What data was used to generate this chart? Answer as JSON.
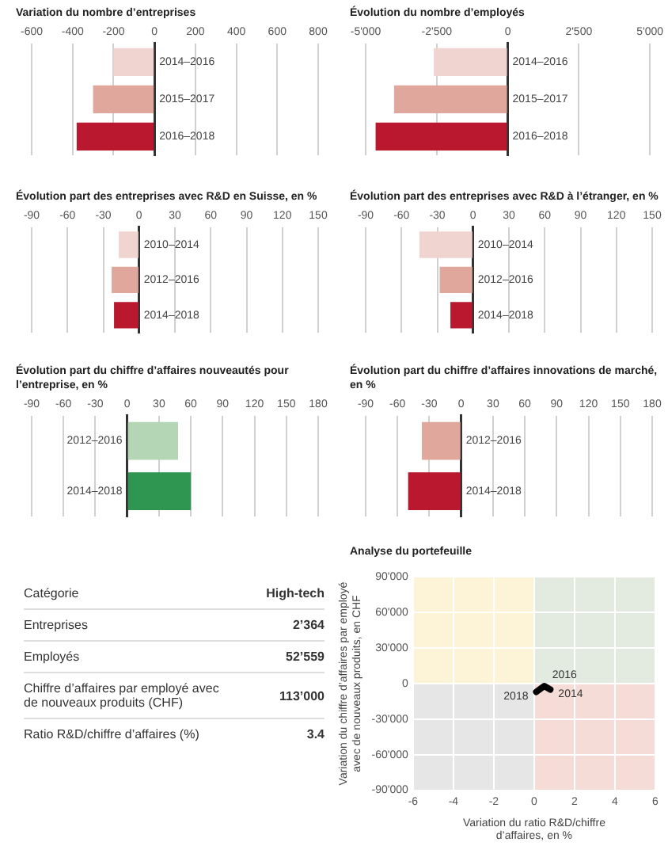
{
  "chart_data": [
    {
      "type": "bar",
      "orientation": "horizontal",
      "title": "Variation du nombre d’entreprises",
      "categories": [
        "2014–2016",
        "2015–2017",
        "2016–2018"
      ],
      "values": [
        -200,
        -300,
        -380
      ],
      "colors": [
        "#f0d4cf",
        "#e0a89c",
        "#b9182f"
      ],
      "xlim": [
        -600,
        800
      ],
      "xticks": [
        -600,
        -400,
        -200,
        0,
        200,
        400,
        600,
        800
      ],
      "grid": "x"
    },
    {
      "type": "bar",
      "orientation": "horizontal",
      "title": "Évolution du nombre d’employés",
      "categories": [
        "2014–2016",
        "2015–2017",
        "2016–2018"
      ],
      "values": [
        -2600,
        -4000,
        -4650
      ],
      "colors": [
        "#f0d4cf",
        "#e0a89c",
        "#b9182f"
      ],
      "xlim": [
        -5000,
        5000
      ],
      "xticks": [
        {
          "value": -5000,
          "label": "-5'000"
        },
        {
          "value": -2500,
          "label": "-2'500"
        },
        0,
        {
          "value": 2500,
          "label": "2'500"
        },
        {
          "value": 5000,
          "label": "5'000"
        }
      ],
      "grid": "x"
    },
    {
      "type": "bar",
      "orientation": "horizontal",
      "title": "Évolution part des entreprises avec R&D en Suisse, en %",
      "categories": [
        "2010–2014",
        "2012–2016",
        "2014–2018"
      ],
      "values": [
        -17,
        -23,
        -21
      ],
      "colors": [
        "#f0d4cf",
        "#e0a89c",
        "#b9182f"
      ],
      "xlim": [
        -90,
        150
      ],
      "xticks": [
        -90,
        -60,
        -30,
        0,
        30,
        60,
        90,
        120,
        150
      ],
      "grid": "x"
    },
    {
      "type": "bar",
      "orientation": "horizontal",
      "title": "Évolution part des entreprises avec R&D à l’étranger, en %",
      "categories": [
        "2010–2014",
        "2012–2016",
        "2014–2018"
      ],
      "values": [
        -45,
        -28,
        -19
      ],
      "colors": [
        "#f0d4cf",
        "#e0a89c",
        "#b9182f"
      ],
      "xlim": [
        -90,
        150
      ],
      "xticks": [
        -90,
        -60,
        -30,
        0,
        30,
        60,
        90,
        120,
        150
      ],
      "grid": "x"
    },
    {
      "type": "bar",
      "orientation": "horizontal",
      "title": "Évolution part du chiffre d’affaires nouveautés pour l’entreprise, en %",
      "categories": [
        "2012–2016",
        "2014–2018"
      ],
      "values": [
        48,
        60
      ],
      "colors": [
        "#b5d6b5",
        "#2e9650"
      ],
      "xlim": [
        -90,
        180
      ],
      "xticks": [
        -90,
        -60,
        -30,
        0,
        30,
        60,
        90,
        120,
        150,
        180
      ],
      "grid": "x"
    },
    {
      "type": "bar",
      "orientation": "horizontal",
      "title": "Évolution part du chiffre d’affaires innovations de marché, en %",
      "categories": [
        "2012–2016",
        "2014–2018"
      ],
      "values": [
        -37,
        -50
      ],
      "colors": [
        "#e0a89c",
        "#b9182f"
      ],
      "xlim": [
        -90,
        180
      ],
      "xticks": [
        -90,
        -60,
        -30,
        0,
        30,
        60,
        90,
        120,
        150,
        180
      ],
      "grid": "x"
    },
    {
      "type": "other",
      "categories": [
        "Catégorie",
        "Entreprises",
        "Employés",
        "Chiffre d’affaires par employé avec de nouveaux produits (CHF)",
        "Ratio R&D/chiffre d’affaires (%)"
      ],
      "value_labels": [
        "High-tech",
        "2’364",
        "52’559",
        "113’000",
        "3.4"
      ]
    },
    {
      "type": "line",
      "title": "Analyse du portefeuille",
      "xlabel": "Variation du ratio R&D/chiffre d’affaires, en %",
      "ylabel": "Variation du chiffre d’affaires par employé avec de nouveaux produits, en CHF",
      "x": [
        0.8,
        0.5,
        0.1
      ],
      "values": [
        -5000,
        -2000,
        -7000
      ],
      "color": "#000000",
      "xlim": [
        -6,
        6
      ],
      "xticks": [
        -6,
        -4,
        -2,
        0,
        2,
        4,
        6
      ],
      "ylim": [
        -90000,
        90000
      ],
      "yticks": [
        {
          "value": -90000,
          "label": "-90'000"
        },
        {
          "value": -60000,
          "label": "-60'000"
        },
        {
          "value": -30000,
          "label": "-30'000"
        },
        0,
        {
          "value": 30000,
          "label": "30'000"
        },
        {
          "value": 60000,
          "label": "60'000"
        },
        {
          "value": 90000,
          "label": "90'000"
        }
      ],
      "grid": true,
      "annotations": [
        {
          "text": "2014",
          "x": 0.8,
          "y": -5000
        },
        {
          "text": "2016",
          "x": 0.5,
          "y": -2000
        },
        {
          "text": "2018",
          "x": 0.1,
          "y": -7000
        }
      ]
    }
  ]
}
